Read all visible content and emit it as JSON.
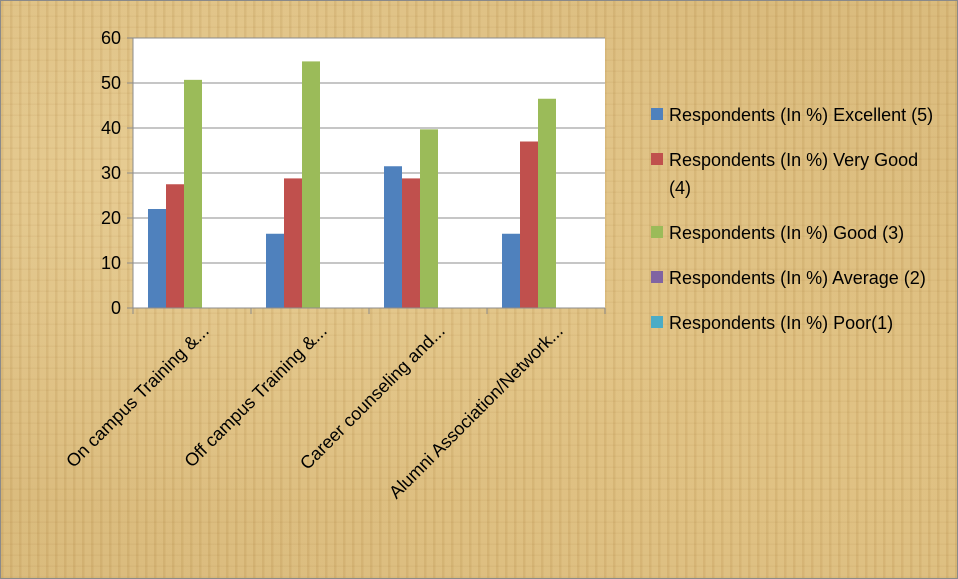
{
  "chart_data": {
    "type": "bar",
    "categories": [
      "On campus Training &...",
      "Off campus Training &...",
      "Career counseling and...",
      "Alumni Association/Network..."
    ],
    "series": [
      {
        "name": "Respondents (In %) Excellent (5)",
        "color": "#4f81bd",
        "values": [
          22,
          16.5,
          31.5,
          16.5
        ]
      },
      {
        "name": "Respondents (In %) Very Good (4)",
        "color": "#c0504d",
        "values": [
          27.5,
          28.8,
          28.8,
          37
        ]
      },
      {
        "name": "Respondents (In %) Good (3)",
        "color": "#9bbb59",
        "values": [
          50.7,
          54.8,
          39.7,
          46.5
        ]
      },
      {
        "name": "Respondents (In %) Average (2)",
        "color": "#8064a2",
        "values": [
          0,
          0,
          0,
          0
        ]
      },
      {
        "name": "Respondents (In %) Poor(1)",
        "color": "#4bacc6",
        "values": [
          0,
          0,
          0,
          0
        ]
      }
    ],
    "ylim": [
      0,
      60
    ],
    "yticks": [
      0,
      10,
      20,
      30,
      40,
      50,
      60
    ],
    "title": "",
    "xlabel": "",
    "ylabel": "",
    "grid": true,
    "legend_position": "right"
  }
}
